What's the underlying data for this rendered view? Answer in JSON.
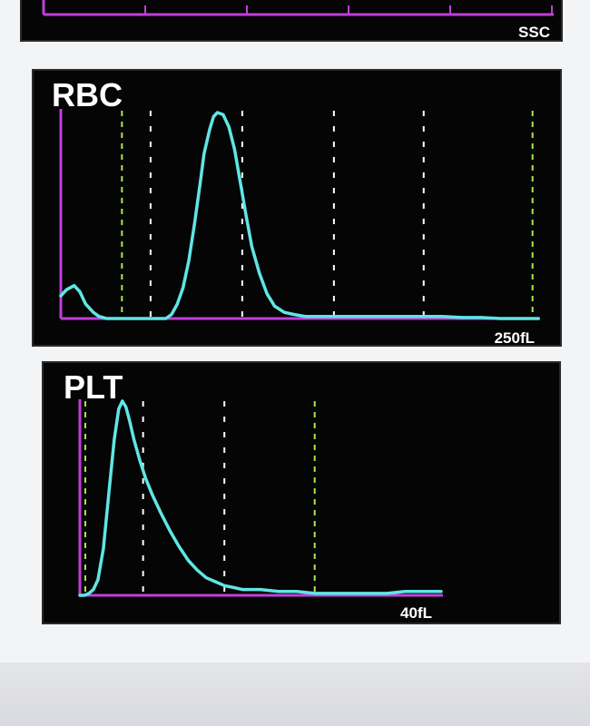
{
  "ssc_panel": {
    "axis_end_label": "SSC"
  },
  "colors": {
    "axis": "#c040d8",
    "curve": "#5fe6e4",
    "threshold_marker": "#a8e84a",
    "divider_marker": "#ffffff",
    "panel_background": "#050505"
  },
  "chart_data": [
    {
      "type": "line",
      "title": "RBC",
      "x_end_label": "250fL",
      "xlim": [
        0,
        250
      ],
      "ylim": [
        0,
        100
      ],
      "grid": false,
      "series": [
        {
          "x": [
            0,
            3,
            7,
            10,
            13,
            17,
            20,
            24,
            28,
            35,
            43,
            50,
            55,
            58,
            61,
            64,
            67,
            70,
            73,
            75,
            78,
            80,
            82,
            85,
            88,
            91,
            94,
            97,
            100,
            104,
            108,
            112,
            117,
            122,
            128,
            135,
            150,
            170,
            190,
            200,
            210,
            220,
            230,
            240,
            245,
            250
          ],
          "y": [
            11,
            14,
            16,
            13,
            7,
            3,
            1,
            0,
            0,
            0,
            0,
            0,
            0,
            2,
            7,
            15,
            28,
            46,
            66,
            80,
            92,
            98,
            100,
            99,
            93,
            82,
            66,
            50,
            35,
            22,
            12,
            6,
            3,
            2,
            1,
            1,
            1,
            1,
            1,
            1,
            0.5,
            0.5,
            0,
            0,
            0,
            0
          ]
        }
      ],
      "threshold_markers": [
        32,
        247
      ],
      "divider_markers": [
        47,
        95,
        143,
        190
      ]
    },
    {
      "type": "line",
      "title": "PLT",
      "x_end_label": "40fL",
      "xlim": [
        0,
        40
      ],
      "ylim": [
        0,
        100
      ],
      "grid": false,
      "series": [
        {
          "x": [
            0,
            0.5,
            1,
            1.5,
            2,
            2.6,
            3.2,
            3.8,
            4.3,
            4.7,
            5.1,
            5.5,
            6,
            6.6,
            7.3,
            8,
            9,
            10,
            11,
            12,
            13,
            14,
            15,
            16,
            17,
            18,
            20,
            22,
            24,
            26,
            28,
            30,
            32,
            34,
            36,
            38,
            40
          ],
          "y": [
            0,
            0,
            1,
            3,
            8,
            24,
            52,
            80,
            96,
            100,
            97,
            90,
            80,
            70,
            60,
            52,
            42,
            33,
            25,
            18,
            13,
            9,
            7,
            5,
            4,
            3,
            3,
            2,
            2,
            1,
            1,
            1,
            1,
            1,
            2,
            2,
            2
          ]
        }
      ],
      "threshold_markers": [
        0.6,
        26
      ],
      "divider_markers": [
        7,
        16
      ]
    }
  ]
}
